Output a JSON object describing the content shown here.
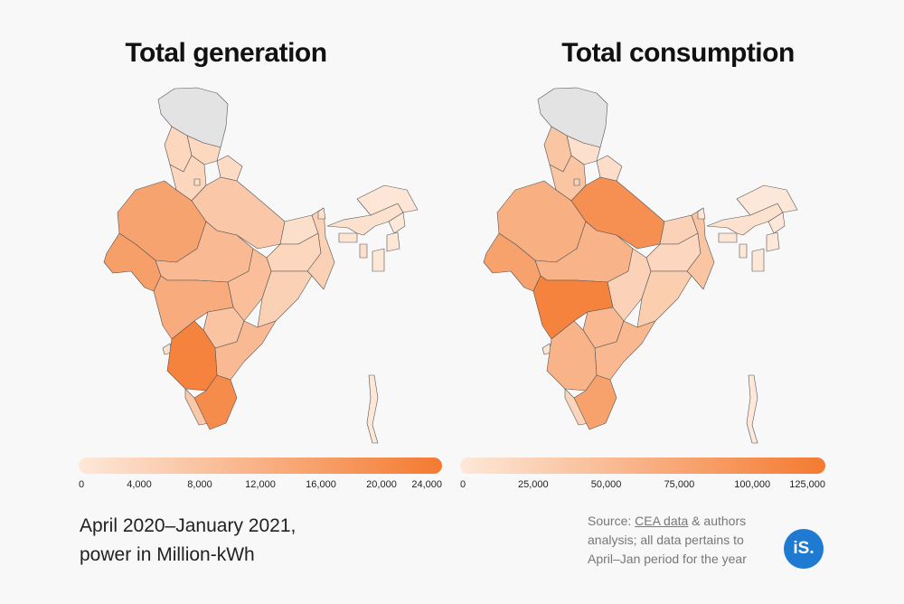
{
  "generation": {
    "title": "Total generation",
    "ticks": [
      "0",
      "4,000",
      "8,000",
      "12,000",
      "16,000",
      "20,000",
      "24,000"
    ],
    "range": [
      0,
      24000
    ]
  },
  "consumption": {
    "title": "Total consumption",
    "ticks": [
      "0",
      "25,000",
      "50,000",
      "75,000",
      "100,000",
      "125,000"
    ],
    "range": [
      0,
      125000
    ]
  },
  "caption": {
    "line1": "April 2020–January 2021,",
    "line2": "power in Million-kWh"
  },
  "source": {
    "prefix": "Source: ",
    "link": "CEA data",
    "suffix": " & authors",
    "line2": "analysis; all data pertains to",
    "line3": "April–Jan period for the year"
  },
  "logo": {
    "text": "iS."
  },
  "colors": {
    "low": "#fde8d9",
    "high": "#f47a30",
    "na": "#e3e3e3",
    "logo": "#1f7ad1",
    "background": "#f8f8f8"
  },
  "map_data": {
    "regions": [
      {
        "name": "Jammu and Kashmir",
        "generation": null,
        "consumption": null
      },
      {
        "name": "Himachal Pradesh",
        "generation": 3500,
        "consumption": 9000
      },
      {
        "name": "Punjab",
        "generation": 4000,
        "consumption": 40000
      },
      {
        "name": "Haryana",
        "generation": 4000,
        "consumption": 40000
      },
      {
        "name": "Uttarakhand",
        "generation": 3000,
        "consumption": 12000
      },
      {
        "name": "Delhi",
        "generation": 2000,
        "consumption": 25000
      },
      {
        "name": "Rajasthan",
        "generation": 15000,
        "consumption": 65000
      },
      {
        "name": "Uttar Pradesh",
        "generation": 7000,
        "consumption": 100000
      },
      {
        "name": "Gujarat",
        "generation": 16000,
        "consumption": 80000
      },
      {
        "name": "Madhya Pradesh",
        "generation": 10000,
        "consumption": 60000
      },
      {
        "name": "Bihar",
        "generation": 2000,
        "consumption": 25000
      },
      {
        "name": "Jharkhand",
        "generation": 4000,
        "consumption": 20000
      },
      {
        "name": "West Bengal",
        "generation": 5000,
        "consumption": 40000
      },
      {
        "name": "Chhattisgarh",
        "generation": 9000,
        "consumption": 25000
      },
      {
        "name": "Odisha",
        "generation": 5000,
        "consumption": 30000
      },
      {
        "name": "Maharashtra",
        "generation": 13000,
        "consumption": 115000
      },
      {
        "name": "Telangana",
        "generation": 8000,
        "consumption": 55000
      },
      {
        "name": "Andhra Pradesh",
        "generation": 10000,
        "consumption": 55000
      },
      {
        "name": "Goa",
        "generation": 1500,
        "consumption": 3000
      },
      {
        "name": "Karnataka",
        "generation": 22000,
        "consumption": 60000
      },
      {
        "name": "Kerala",
        "generation": 7000,
        "consumption": 22000
      },
      {
        "name": "Tamil Nadu",
        "generation": 20000,
        "consumption": 80000
      },
      {
        "name": "Sikkim",
        "generation": 1500,
        "consumption": 1000
      },
      {
        "name": "Assam",
        "generation": 1500,
        "consumption": 8000
      },
      {
        "name": "Arunachal Pradesh",
        "generation": 500,
        "consumption": 1000
      },
      {
        "name": "Meghalaya",
        "generation": 800,
        "consumption": 2000
      },
      {
        "name": "Nagaland",
        "generation": 300,
        "consumption": 800
      },
      {
        "name": "Manipur",
        "generation": 300,
        "consumption": 800
      },
      {
        "name": "Mizoram",
        "generation": 300,
        "consumption": 600
      },
      {
        "name": "Tripura",
        "generation": 1800,
        "consumption": 1500
      },
      {
        "name": "Andaman and Nicobar Islands",
        "generation": 300,
        "consumption": 300
      }
    ]
  }
}
